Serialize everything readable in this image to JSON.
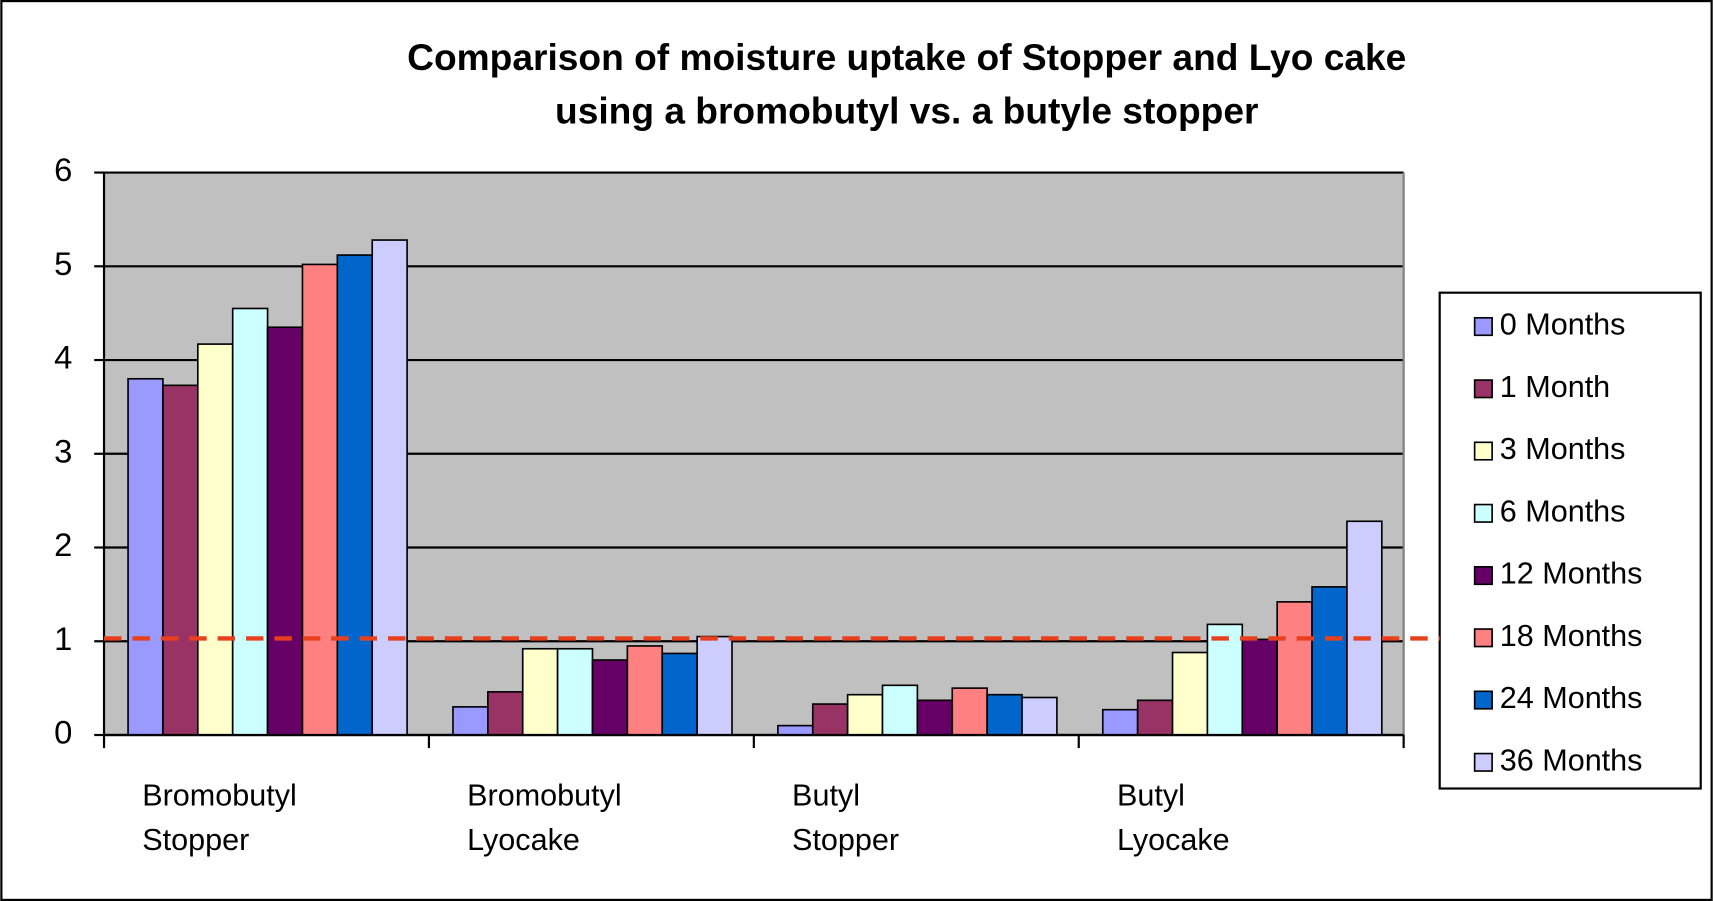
{
  "chart_data": {
    "type": "bar",
    "title": [
      "Comparison of moisture uptake of Stopper  and Lyo cake",
      "using a bromobutyl vs. a butyle stopper"
    ],
    "categories": [
      [
        "Bromobutyl",
        "Stopper"
      ],
      [
        "Bromobutyl",
        "Lyocake"
      ],
      [
        "Butyl",
        "Stopper"
      ],
      [
        "Butyl",
        "Lyocake"
      ]
    ],
    "series": [
      {
        "name": "0 Months",
        "color": "#9999ff",
        "values": [
          3.8,
          0.3,
          0.1,
          0.27
        ]
      },
      {
        "name": "1 Month",
        "color": "#993366",
        "values": [
          3.73,
          0.46,
          0.33,
          0.37
        ]
      },
      {
        "name": "3 Months",
        "color": "#ffffcc",
        "values": [
          4.17,
          0.92,
          0.43,
          0.88
        ]
      },
      {
        "name": "6 Months",
        "color": "#ccffff",
        "values": [
          4.55,
          0.92,
          0.53,
          1.18
        ]
      },
      {
        "name": "12 Months",
        "color": "#660066",
        "values": [
          4.35,
          0.8,
          0.37,
          1.02
        ]
      },
      {
        "name": "18 Months",
        "color": "#ff8080",
        "values": [
          5.02,
          0.95,
          0.5,
          1.42
        ]
      },
      {
        "name": "24 Months",
        "color": "#0066cc",
        "values": [
          5.12,
          0.87,
          0.43,
          1.58
        ]
      },
      {
        "name": "36 Months",
        "color": "#ccccff",
        "values": [
          5.28,
          1.05,
          0.4,
          2.28
        ]
      }
    ],
    "ylim": [
      0,
      6
    ],
    "yticks": [
      0,
      1,
      2,
      3,
      4,
      5,
      6
    ],
    "grid": true,
    "reference_line": {
      "value": 1.03,
      "color": "#e8401c"
    },
    "legend": "right"
  }
}
